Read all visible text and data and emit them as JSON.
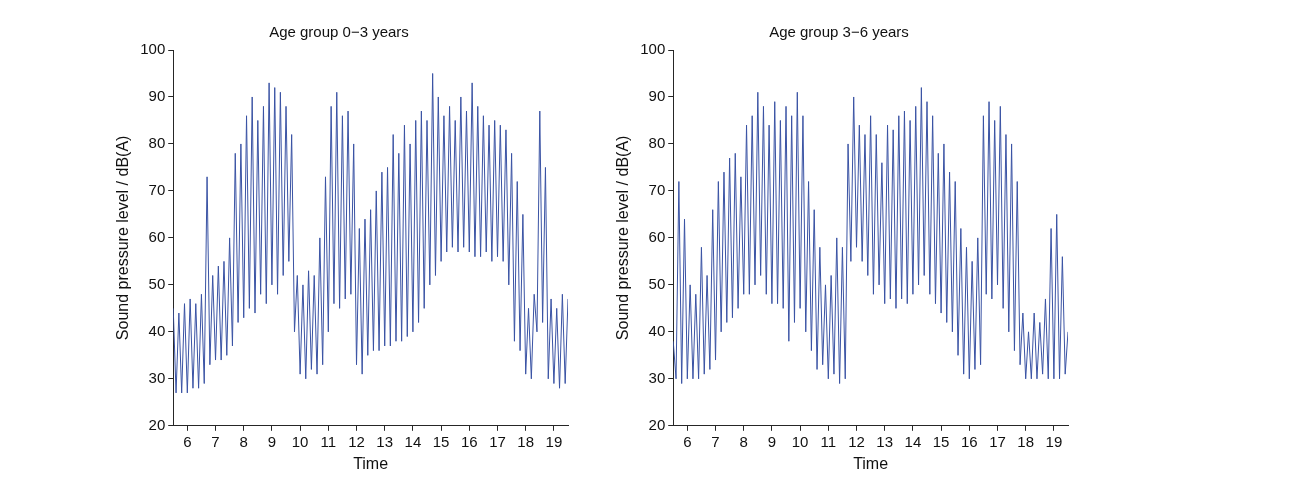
{
  "chart_data": [
    {
      "type": "line",
      "title": "Age group 0−3 years",
      "xlabel": "Time",
      "ylabel": "Sound pressure level / dB(A)",
      "xlim": [
        5.5,
        19.5
      ],
      "xticks": [
        6,
        7,
        8,
        9,
        10,
        11,
        12,
        13,
        14,
        15,
        16,
        17,
        18,
        19
      ],
      "ylim": [
        20,
        100
      ],
      "yticks": [
        20,
        30,
        40,
        50,
        60,
        70,
        80,
        90,
        100
      ],
      "grid": false,
      "legend": false,
      "marker": "none",
      "line_style": "solid",
      "x": [
        5.5,
        5.6,
        5.7,
        5.8,
        5.9,
        6.0,
        6.1,
        6.2,
        6.3,
        6.4,
        6.5,
        6.6,
        6.7,
        6.8,
        6.9,
        7.0,
        7.1,
        7.2,
        7.3,
        7.4,
        7.5,
        7.6,
        7.7,
        7.8,
        7.9,
        8.0,
        8.1,
        8.2,
        8.3,
        8.4,
        8.5,
        8.6,
        8.7,
        8.8,
        8.9,
        9.0,
        9.1,
        9.2,
        9.3,
        9.4,
        9.5,
        9.6,
        9.7,
        9.8,
        9.9,
        10.0,
        10.1,
        10.2,
        10.3,
        10.4,
        10.5,
        10.6,
        10.7,
        10.8,
        10.9,
        11.0,
        11.1,
        11.2,
        11.3,
        11.4,
        11.5,
        11.6,
        11.7,
        11.8,
        11.9,
        12.0,
        12.1,
        12.2,
        12.3,
        12.4,
        12.5,
        12.6,
        12.7,
        12.8,
        12.9,
        13.0,
        13.1,
        13.2,
        13.3,
        13.4,
        13.5,
        13.6,
        13.7,
        13.8,
        13.9,
        14.0,
        14.1,
        14.2,
        14.3,
        14.4,
        14.5,
        14.6,
        14.7,
        14.8,
        14.9,
        15.0,
        15.1,
        15.2,
        15.3,
        15.4,
        15.5,
        15.6,
        15.7,
        15.8,
        15.9,
        16.0,
        16.1,
        16.2,
        16.3,
        16.4,
        16.5,
        16.6,
        16.7,
        16.8,
        16.9,
        17.0,
        17.1,
        17.2,
        17.3,
        17.4,
        17.5,
        17.6,
        17.7,
        17.8,
        17.9,
        18.0,
        18.1,
        18.2,
        18.3,
        18.4,
        18.5,
        18.6,
        18.7,
        18.8,
        18.9,
        19.0,
        19.1,
        19.2,
        19.3,
        19.4,
        19.5
      ],
      "series": [
        {
          "color": "#3a53a4",
          "values": [
            45,
            27,
            44,
            27,
            46,
            27,
            47,
            28,
            46,
            28,
            48,
            29,
            73,
            33,
            52,
            34,
            54,
            34,
            55,
            35,
            60,
            37,
            78,
            42,
            80,
            43,
            86,
            45,
            90,
            44,
            85,
            48,
            88,
            46,
            93,
            50,
            92,
            48,
            91,
            52,
            88,
            55,
            82,
            40,
            52,
            31,
            50,
            30,
            53,
            32,
            52,
            31,
            60,
            33,
            73,
            40,
            88,
            46,
            91,
            45,
            86,
            47,
            87,
            48,
            80,
            33,
            62,
            31,
            64,
            35,
            66,
            36,
            70,
            36,
            74,
            37,
            75,
            37,
            82,
            38,
            78,
            38,
            84,
            39,
            80,
            40,
            85,
            42,
            87,
            45,
            85,
            50,
            95,
            52,
            90,
            55,
            86,
            57,
            88,
            58,
            85,
            57,
            90,
            58,
            87,
            57,
            93,
            56,
            88,
            56,
            86,
            57,
            84,
            55,
            85,
            56,
            84,
            55,
            83,
            50,
            78,
            38,
            72,
            36,
            65,
            31,
            45,
            30,
            48,
            40,
            87,
            42,
            75,
            30,
            47,
            29,
            45,
            28,
            48,
            29,
            47
          ]
        }
      ]
    },
    {
      "type": "line",
      "title": "Age group 3−6 years",
      "xlabel": "Time",
      "ylabel": "Sound pressure level / dB(A)",
      "xlim": [
        5.5,
        19.5
      ],
      "xticks": [
        6,
        7,
        8,
        9,
        10,
        11,
        12,
        13,
        14,
        15,
        16,
        17,
        18,
        19
      ],
      "ylim": [
        20,
        100
      ],
      "yticks": [
        20,
        30,
        40,
        50,
        60,
        70,
        80,
        90,
        100
      ],
      "grid": false,
      "legend": false,
      "marker": "none",
      "line_style": "solid",
      "x": [
        5.5,
        5.6,
        5.7,
        5.8,
        5.9,
        6.0,
        6.1,
        6.2,
        6.3,
        6.4,
        6.5,
        6.6,
        6.7,
        6.8,
        6.9,
        7.0,
        7.1,
        7.2,
        7.3,
        7.4,
        7.5,
        7.6,
        7.7,
        7.8,
        7.9,
        8.0,
        8.1,
        8.2,
        8.3,
        8.4,
        8.5,
        8.6,
        8.7,
        8.8,
        8.9,
        9.0,
        9.1,
        9.2,
        9.3,
        9.4,
        9.5,
        9.6,
        9.7,
        9.8,
        9.9,
        10.0,
        10.1,
        10.2,
        10.3,
        10.4,
        10.5,
        10.6,
        10.7,
        10.8,
        10.9,
        11.0,
        11.1,
        11.2,
        11.3,
        11.4,
        11.5,
        11.6,
        11.7,
        11.8,
        11.9,
        12.0,
        12.1,
        12.2,
        12.3,
        12.4,
        12.5,
        12.6,
        12.7,
        12.8,
        12.9,
        13.0,
        13.1,
        13.2,
        13.3,
        13.4,
        13.5,
        13.6,
        13.7,
        13.8,
        13.9,
        14.0,
        14.1,
        14.2,
        14.3,
        14.4,
        14.5,
        14.6,
        14.7,
        14.8,
        14.9,
        15.0,
        15.1,
        15.2,
        15.3,
        15.4,
        15.5,
        15.6,
        15.7,
        15.8,
        15.9,
        16.0,
        16.1,
        16.2,
        16.3,
        16.4,
        16.5,
        16.6,
        16.7,
        16.8,
        16.9,
        17.0,
        17.1,
        17.2,
        17.3,
        17.4,
        17.5,
        17.6,
        17.7,
        17.8,
        17.9,
        18.0,
        18.1,
        18.2,
        18.3,
        18.4,
        18.5,
        18.6,
        18.7,
        18.8,
        18.9,
        19.0,
        19.1,
        19.2,
        19.3,
        19.4,
        19.5
      ],
      "series": [
        {
          "color": "#3a53a4",
          "values": [
            38,
            30,
            72,
            29,
            64,
            30,
            50,
            30,
            48,
            30,
            58,
            31,
            52,
            32,
            66,
            34,
            72,
            40,
            74,
            42,
            77,
            43,
            78,
            45,
            73,
            48,
            84,
            48,
            86,
            50,
            91,
            52,
            88,
            48,
            84,
            46,
            89,
            46,
            85,
            45,
            88,
            38,
            86,
            42,
            91,
            45,
            86,
            40,
            72,
            36,
            66,
            32,
            58,
            33,
            50,
            30,
            52,
            31,
            60,
            29,
            58,
            30,
            80,
            55,
            90,
            58,
            84,
            55,
            82,
            52,
            86,
            48,
            82,
            50,
            76,
            46,
            84,
            47,
            83,
            45,
            86,
            47,
            87,
            46,
            85,
            48,
            88,
            50,
            92,
            52,
            89,
            48,
            86,
            46,
            78,
            44,
            80,
            42,
            74,
            40,
            72,
            35,
            62,
            31,
            58,
            30,
            55,
            32,
            60,
            33,
            86,
            48,
            89,
            47,
            85,
            50,
            88,
            45,
            82,
            40,
            80,
            36,
            72,
            33,
            44,
            30,
            40,
            30,
            44,
            30,
            42,
            31,
            47,
            30,
            62,
            30,
            65,
            30,
            56,
            31,
            40
          ]
        }
      ]
    }
  ]
}
